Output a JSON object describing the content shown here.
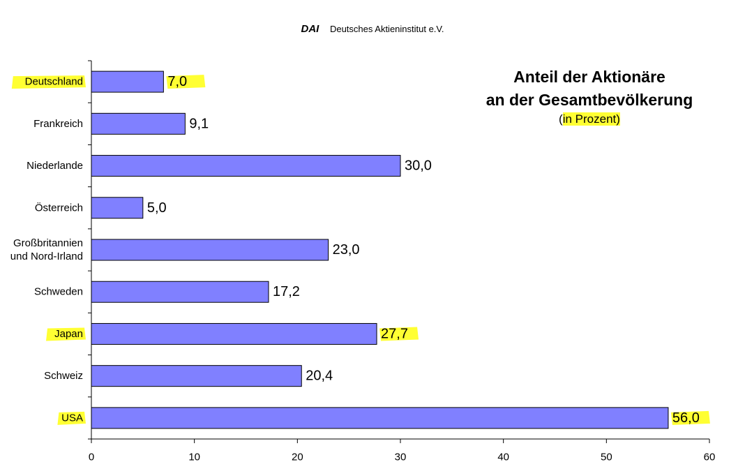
{
  "header": {
    "brand": "DAI",
    "org": "Deutsches Aktieninstitut e.V."
  },
  "chart_data": {
    "type": "bar",
    "orientation": "horizontal",
    "title_lines": [
      "Anteil der Aktionäre",
      "an der Gesamtbevölkerung"
    ],
    "subtitle": {
      "open": "(",
      "text": "in Prozent",
      "close": ")"
    },
    "categories": [
      [
        "Deutschland"
      ],
      [
        "Frankreich"
      ],
      [
        "Niederlande"
      ],
      [
        "Österreich"
      ],
      [
        "Großbritannien",
        "und Nord-Irland"
      ],
      [
        "Schweden"
      ],
      [
        "Japan"
      ],
      [
        "Schweiz"
      ],
      [
        "USA"
      ]
    ],
    "values": [
      7.0,
      9.1,
      30.0,
      5.0,
      23.0,
      17.2,
      27.7,
      20.4,
      56.0
    ],
    "value_labels": [
      "7,0",
      "9,1",
      "30,0",
      "5,0",
      "23,0",
      "17,2",
      "27,7",
      "20,4",
      "56,0"
    ],
    "highlighted": [
      "Deutschland",
      "Japan",
      "USA"
    ],
    "xlim": [
      0,
      60
    ],
    "xticks": [
      0,
      10,
      20,
      30,
      40,
      50,
      60
    ],
    "grid": false,
    "colors": {
      "bar": "#8080ff",
      "bar_edge": "#000000",
      "highlight": "#ffff33"
    }
  }
}
